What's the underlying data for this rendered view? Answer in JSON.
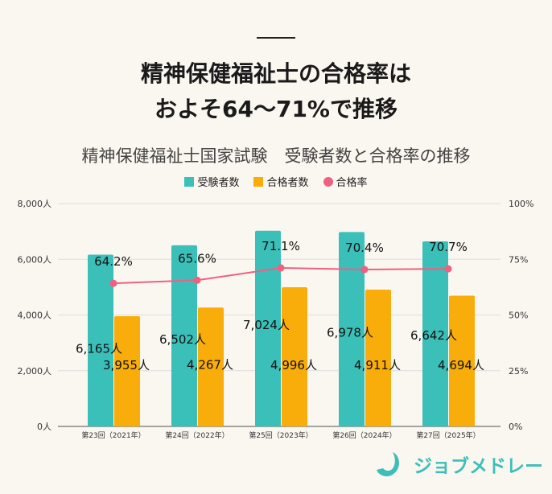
{
  "headline": [
    "精神保健福祉士の合格率は",
    "およそ64～71%で推移"
  ],
  "chart_data": {
    "type": "bar+line",
    "title": "精神保健福祉士国家試験　受験者数と合格率の推移",
    "categories": [
      "第23回（2021年）",
      "第24回（2022年）",
      "第25回（2023年）",
      "第26回（2024年）",
      "第27回（2025年）"
    ],
    "series": [
      {
        "name": "受験者数",
        "type": "bar",
        "axis": "left",
        "color": "#3bbfb9",
        "values": [
          6165,
          6502,
          7024,
          6978,
          6642
        ],
        "labels": [
          "6,165人",
          "6,502人",
          "7,024人",
          "6,978人",
          "6,642人"
        ]
      },
      {
        "name": "合格者数",
        "type": "bar",
        "axis": "left",
        "color": "#f9ad0b",
        "values": [
          3955,
          4267,
          4996,
          4911,
          4694
        ],
        "labels": [
          "3,955人",
          "4,267人",
          "4,996人",
          "4,911人",
          "4,694人"
        ]
      },
      {
        "name": "合格率",
        "type": "line",
        "axis": "right",
        "color": "#f06080",
        "values": [
          64.2,
          65.6,
          71.1,
          70.4,
          70.7
        ],
        "labels": [
          "64.2%",
          "65.6%",
          "71.1%",
          "70.4%",
          "70.7%"
        ]
      }
    ],
    "ylim": [
      0,
      8000
    ],
    "yticks": [
      "0人",
      "2,000人",
      "4,000人",
      "6,000人",
      "8,000人"
    ],
    "y2lim": [
      0,
      100
    ],
    "y2ticks": [
      "0%",
      "25%",
      "50%",
      "75%",
      "100%"
    ],
    "legend": "top",
    "grid": true
  },
  "logo": "ジョブメドレー"
}
